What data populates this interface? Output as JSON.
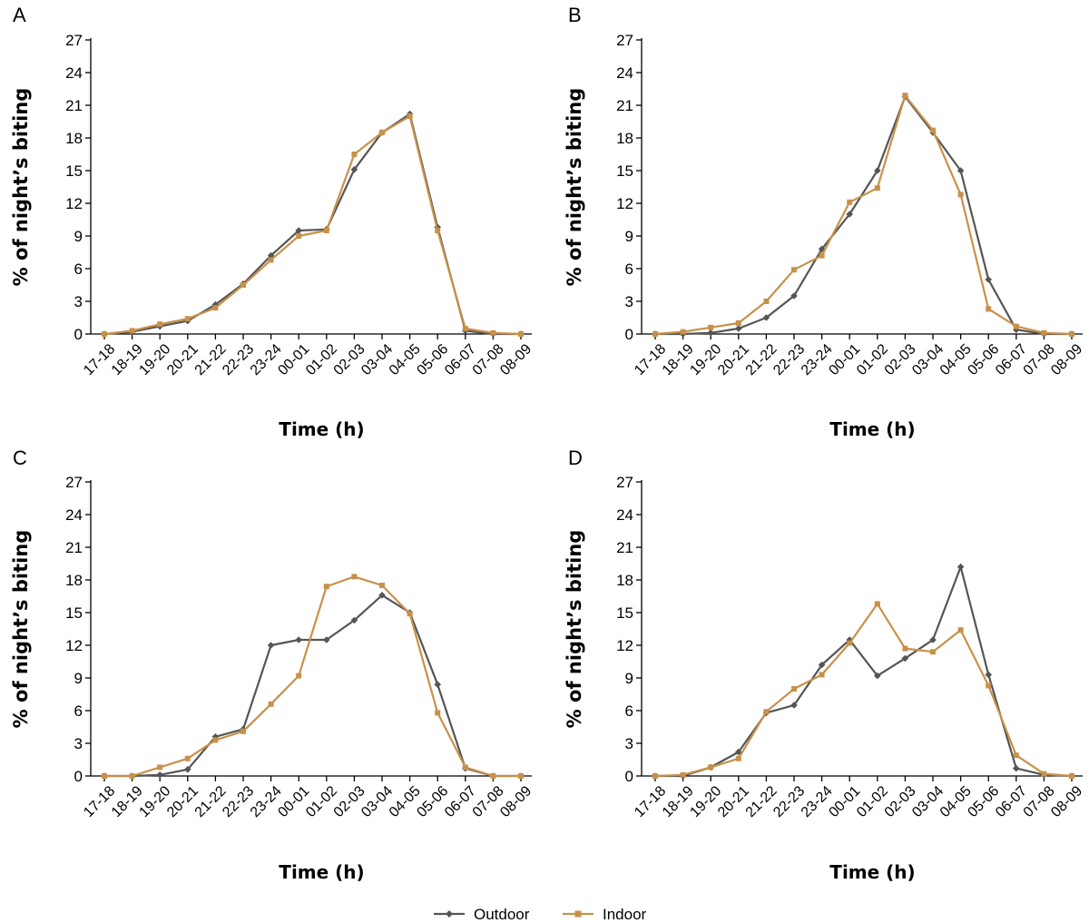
{
  "colors": {
    "outdoor": "#555555",
    "indoor": "#c8914a"
  },
  "legend": [
    {
      "name": "Outdoor",
      "marker": "diamond"
    },
    {
      "name": "Indoor",
      "marker": "square"
    }
  ],
  "chart_data": [
    {
      "type": "line",
      "panel": "A",
      "xlabel": "Time (h)",
      "ylabel": "% of night’s biting",
      "ylim": [
        0,
        27
      ],
      "yticks": [
        0,
        3,
        6,
        9,
        12,
        15,
        18,
        21,
        24,
        27
      ],
      "categories": [
        "17-18",
        "18-19",
        "19-20",
        "20-21",
        "21-22",
        "22-23",
        "23-24",
        "00-01",
        "01-02",
        "02-03",
        "03-04",
        "04-05",
        "05-06",
        "06-07",
        "07-08",
        "08-09"
      ],
      "series": [
        {
          "name": "Outdoor",
          "values": [
            0,
            0.2,
            0.7,
            1.2,
            2.7,
            4.6,
            7.2,
            9.5,
            9.6,
            15.1,
            18.5,
            20.2,
            9.8,
            0.3,
            0,
            0
          ]
        },
        {
          "name": "Indoor",
          "values": [
            0,
            0.3,
            0.9,
            1.4,
            2.4,
            4.5,
            6.8,
            9.0,
            9.5,
            16.5,
            18.5,
            20.0,
            9.5,
            0.5,
            0.1,
            0
          ]
        }
      ]
    },
    {
      "type": "line",
      "panel": "B",
      "xlabel": "Time (h)",
      "ylabel": "% of night’s biting",
      "ylim": [
        0,
        27
      ],
      "yticks": [
        0,
        3,
        6,
        9,
        12,
        15,
        18,
        21,
        24,
        27
      ],
      "categories": [
        "17-18",
        "18-19",
        "19-20",
        "20-21",
        "21-22",
        "22-23",
        "23-24",
        "00-01",
        "01-02",
        "02-03",
        "03-04",
        "04-05",
        "05-06",
        "06-07",
        "07-08",
        "08-09"
      ],
      "series": [
        {
          "name": "Outdoor",
          "values": [
            0,
            0,
            0.1,
            0.5,
            1.5,
            3.5,
            7.8,
            11.0,
            15.0,
            21.8,
            18.5,
            15.0,
            5.0,
            0.4,
            0,
            0
          ]
        },
        {
          "name": "Indoor",
          "values": [
            0,
            0.2,
            0.6,
            1.0,
            3.0,
            5.9,
            7.2,
            12.1,
            13.4,
            21.9,
            18.7,
            12.8,
            2.3,
            0.7,
            0.1,
            0
          ]
        }
      ]
    },
    {
      "type": "line",
      "panel": "C",
      "xlabel": "Time (h)",
      "ylabel": "% of night’s biting",
      "ylim": [
        0,
        27
      ],
      "yticks": [
        0,
        3,
        6,
        9,
        12,
        15,
        18,
        21,
        24,
        27
      ],
      "categories": [
        "17-18",
        "18-19",
        "19-20",
        "20-21",
        "21-22",
        "22-23",
        "23-24",
        "00-01",
        "01-02",
        "02-03",
        "03-04",
        "04-05",
        "05-06",
        "06-07",
        "07-08",
        "08-09"
      ],
      "series": [
        {
          "name": "Outdoor",
          "values": [
            0,
            0,
            0.1,
            0.6,
            3.6,
            4.3,
            12.0,
            12.5,
            12.5,
            14.3,
            16.6,
            15.0,
            8.4,
            0.7,
            0,
            0
          ]
        },
        {
          "name": "Indoor",
          "values": [
            0,
            0,
            0.8,
            1.6,
            3.3,
            4.1,
            6.6,
            9.2,
            17.4,
            18.3,
            17.5,
            14.9,
            5.8,
            0.8,
            0,
            0
          ]
        }
      ]
    },
    {
      "type": "line",
      "panel": "D",
      "xlabel": "Time (h)",
      "ylabel": "% of night’s biting",
      "ylim": [
        0,
        27
      ],
      "yticks": [
        0,
        3,
        6,
        9,
        12,
        15,
        18,
        21,
        24,
        27
      ],
      "categories": [
        "17-18",
        "18-19",
        "19-20",
        "20-21",
        "21-22",
        "22-23",
        "23-24",
        "00-01",
        "01-02",
        "02-03",
        "03-04",
        "04-05",
        "05-06",
        "06-07",
        "07-08",
        "08-09"
      ],
      "series": [
        {
          "name": "Outdoor",
          "values": [
            0,
            0,
            0.8,
            2.2,
            5.8,
            6.5,
            10.2,
            12.5,
            9.2,
            10.8,
            12.5,
            19.2,
            9.3,
            0.7,
            0.1,
            0
          ]
        },
        {
          "name": "Indoor",
          "values": [
            0,
            0.1,
            0.8,
            1.6,
            5.9,
            8.0,
            9.3,
            12.2,
            15.8,
            11.7,
            11.4,
            13.4,
            8.3,
            1.9,
            0.2,
            0
          ]
        }
      ]
    }
  ]
}
